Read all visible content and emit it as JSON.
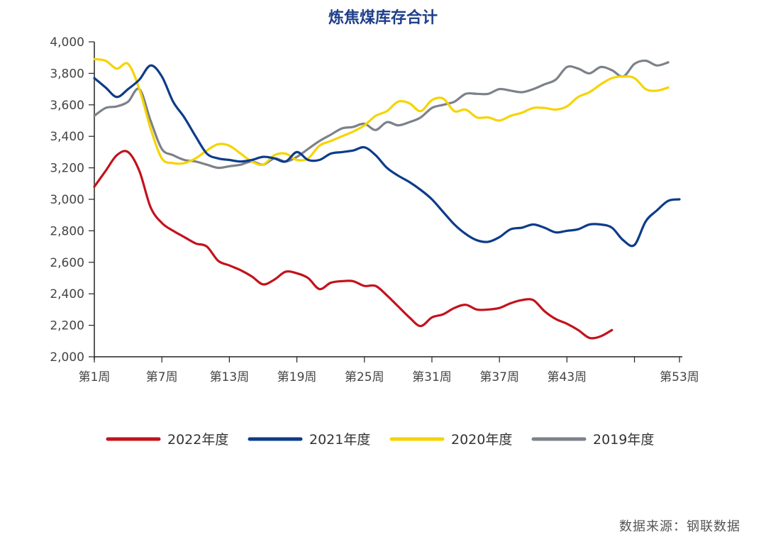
{
  "chart_data": {
    "type": "line",
    "title": "炼焦煤库存合计",
    "xlabel": "",
    "ylabel": "",
    "ylim": [
      2000,
      4000
    ],
    "yticks": [
      2000,
      2200,
      2400,
      2600,
      2800,
      3000,
      3200,
      3400,
      3600,
      3800,
      4000
    ],
    "ytick_labels": [
      "2,000",
      "2,200",
      "2,400",
      "2,600",
      "2,800",
      "3,000",
      "3,200",
      "3,400",
      "3,600",
      "3,800",
      "4,000"
    ],
    "xlim": [
      1,
      53
    ],
    "xticks": [
      {
        "week": 1,
        "label": "第1周"
      },
      {
        "week": 7,
        "label": "第7周"
      },
      {
        "week": 13,
        "label": "第13周"
      },
      {
        "week": 19,
        "label": "第19周"
      },
      {
        "week": 25,
        "label": "第25周"
      },
      {
        "week": 31,
        "label": "第31周"
      },
      {
        "week": 37,
        "label": "第37周"
      },
      {
        "week": 43,
        "label": "第43周"
      },
      {
        "week": 53,
        "label": "第53周"
      }
    ],
    "series": [
      {
        "name": "2022年度",
        "color": "#c3121c",
        "x": [
          1,
          2,
          3,
          4,
          5,
          6,
          7,
          8,
          9,
          10,
          11,
          12,
          13,
          14,
          15,
          16,
          17,
          18,
          19,
          20,
          21,
          22,
          23,
          24,
          25,
          26,
          27,
          28,
          29,
          30,
          31,
          32,
          33,
          34,
          35,
          36,
          37,
          38,
          39,
          40,
          41,
          42,
          43,
          44,
          45,
          46,
          47
        ],
        "values": [
          3080,
          3180,
          3280,
          3300,
          3180,
          2950,
          2850,
          2800,
          2760,
          2720,
          2700,
          2610,
          2580,
          2550,
          2510,
          2460,
          2490,
          2540,
          2530,
          2500,
          2430,
          2470,
          2480,
          2480,
          2450,
          2450,
          2390,
          2320,
          2250,
          2195,
          2250,
          2270,
          2310,
          2330,
          2300,
          2300,
          2310,
          2340,
          2360,
          2360,
          2290,
          2240,
          2210,
          2170,
          2120,
          2130,
          2170
        ]
      },
      {
        "name": "2021年度",
        "color": "#0d3b8a",
        "x": [
          1,
          2,
          3,
          4,
          5,
          6,
          7,
          8,
          9,
          10,
          11,
          12,
          13,
          14,
          15,
          16,
          17,
          18,
          19,
          20,
          21,
          22,
          23,
          24,
          25,
          26,
          27,
          28,
          29,
          30,
          31,
          32,
          33,
          34,
          35,
          36,
          37,
          38,
          39,
          40,
          41,
          42,
          43,
          44,
          45,
          46,
          47,
          48,
          49,
          50,
          51,
          52,
          53
        ],
        "values": [
          3770,
          3710,
          3650,
          3700,
          3760,
          3850,
          3780,
          3620,
          3520,
          3400,
          3290,
          3260,
          3250,
          3240,
          3250,
          3270,
          3260,
          3240,
          3300,
          3250,
          3250,
          3290,
          3300,
          3310,
          3330,
          3280,
          3200,
          3150,
          3110,
          3060,
          3000,
          2920,
          2840,
          2780,
          2740,
          2730,
          2760,
          2810,
          2820,
          2840,
          2820,
          2790,
          2800,
          2810,
          2840,
          2840,
          2820,
          2740,
          2710,
          2860,
          2930,
          2990,
          3000
        ]
      },
      {
        "name": "2020年度",
        "color": "#f5d400",
        "x": [
          1,
          2,
          3,
          4,
          5,
          6,
          7,
          8,
          9,
          10,
          11,
          12,
          13,
          14,
          15,
          16,
          17,
          18,
          19,
          20,
          21,
          22,
          23,
          24,
          25,
          26,
          27,
          28,
          29,
          30,
          31,
          32,
          33,
          34,
          35,
          36,
          37,
          38,
          39,
          40,
          41,
          42,
          43,
          44,
          45,
          46,
          47,
          48,
          49,
          50,
          51,
          52
        ],
        "values": [
          3890,
          3880,
          3830,
          3860,
          3700,
          3450,
          3260,
          3230,
          3230,
          3260,
          3310,
          3350,
          3340,
          3290,
          3240,
          3220,
          3280,
          3290,
          3250,
          3260,
          3340,
          3370,
          3400,
          3430,
          3470,
          3530,
          3560,
          3620,
          3610,
          3560,
          3630,
          3640,
          3560,
          3570,
          3520,
          3520,
          3500,
          3530,
          3550,
          3580,
          3580,
          3570,
          3590,
          3650,
          3680,
          3730,
          3770,
          3780,
          3770,
          3700,
          3690,
          3710
        ]
      },
      {
        "name": "2019年度",
        "color": "#7c818a",
        "x": [
          1,
          2,
          3,
          4,
          5,
          6,
          7,
          8,
          9,
          10,
          11,
          12,
          13,
          14,
          15,
          16,
          17,
          18,
          19,
          20,
          21,
          22,
          23,
          24,
          25,
          26,
          27,
          28,
          29,
          30,
          31,
          32,
          33,
          34,
          35,
          36,
          37,
          38,
          39,
          40,
          41,
          42,
          43,
          44,
          45,
          46,
          47,
          48,
          49,
          50,
          51,
          52
        ],
        "values": [
          3530,
          3580,
          3590,
          3620,
          3700,
          3500,
          3320,
          3280,
          3250,
          3240,
          3220,
          3200,
          3210,
          3220,
          3240,
          3220,
          3260,
          3240,
          3270,
          3320,
          3370,
          3410,
          3450,
          3460,
          3480,
          3440,
          3490,
          3470,
          3490,
          3520,
          3580,
          3600,
          3620,
          3670,
          3670,
          3670,
          3700,
          3690,
          3680,
          3700,
          3730,
          3760,
          3840,
          3830,
          3800,
          3840,
          3820,
          3780,
          3860,
          3880,
          3850,
          3870
        ]
      }
    ],
    "legend_position": "bottom",
    "grid": false
  },
  "source": {
    "text": "数据来源：钢联数据"
  }
}
